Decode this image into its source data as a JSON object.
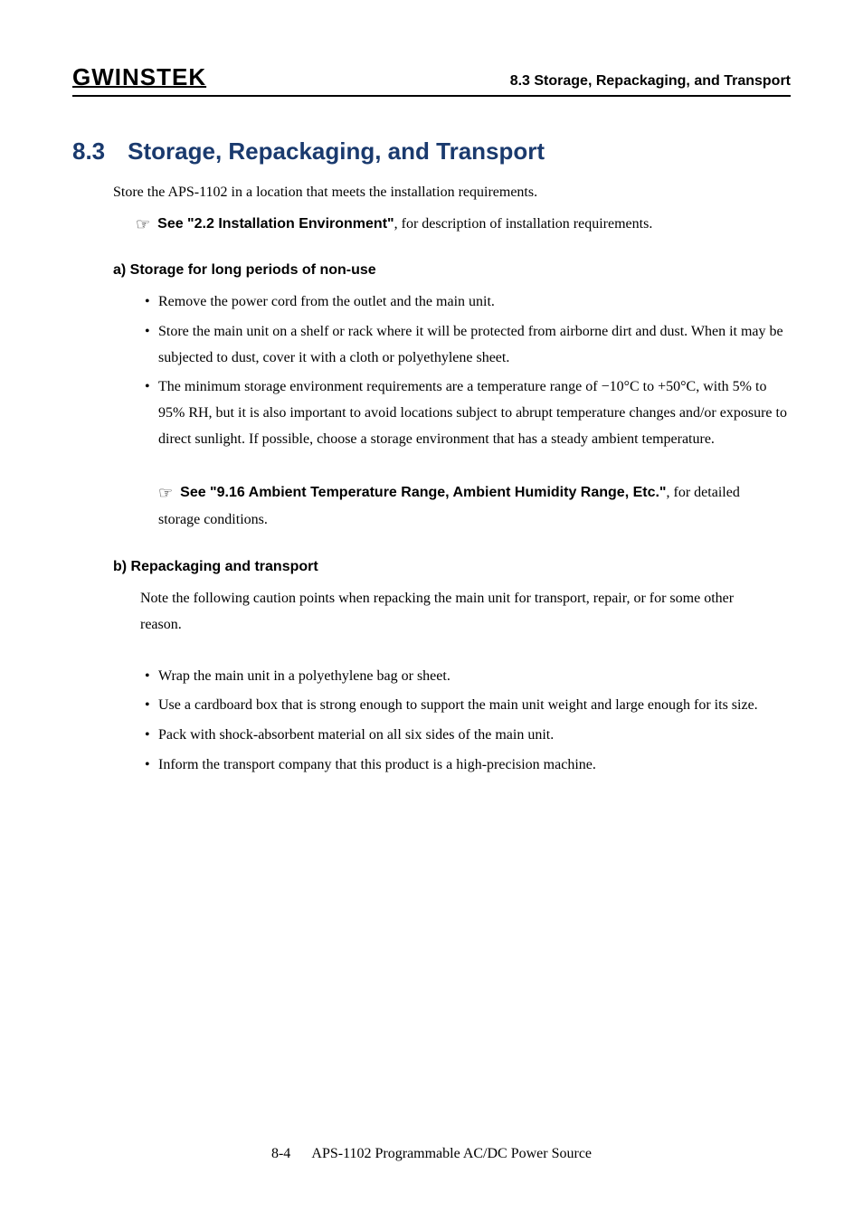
{
  "header": {
    "logo_text": "GWINSTEK",
    "title": "8.3 Storage, Repackaging, and Transport"
  },
  "section": {
    "number": "8.3",
    "title": "Storage, Repackaging, and Transport",
    "title_color": "#1a3a6e",
    "title_fontsize": 26
  },
  "intro": "Store the APS-1102 in a location that meets the installation requirements.",
  "see_ref1_bold": "See \"2.2  Installation Environment\"",
  "see_ref1_rest": ", for description of installation requirements.",
  "subsection_a": {
    "heading": "a) Storage for long periods of non-use",
    "bullets": [
      "Remove the power cord from the outlet and the main unit.",
      "Store the main unit on a shelf or rack where it will be protected from airborne dirt and dust. When it may be subjected to dust, cover it with a cloth or polyethylene sheet.",
      "The minimum storage environment requirements are a temperature range of −10°C to +50°C, with 5% to 95% RH, but it is also important to avoid locations subject to abrupt temperature changes and/or exposure to direct sunlight.  If possible, choose a storage environment that has a steady ambient temperature."
    ],
    "see_ref_bold": "See \"9.16 Ambient Temperature Range, Ambient Humidity Range, Etc.\"",
    "see_ref_rest": ", for detailed storage conditions."
  },
  "subsection_b": {
    "heading": "b) Repackaging and transport",
    "note": "Note the following caution points when repacking the main unit for transport, repair, or for some other reason.",
    "bullets": [
      "Wrap the main unit in a polyethylene bag or sheet.",
      "Use a cardboard box that is strong enough to support the main unit weight and large enough for its size.",
      "Pack with shock-absorbent material on all six sides of the main unit.",
      "Inform the transport company that this product is a high-precision machine."
    ]
  },
  "footer": {
    "page": "8-4",
    "doc": "APS-1102 Programmable AC/DC Power Source"
  }
}
